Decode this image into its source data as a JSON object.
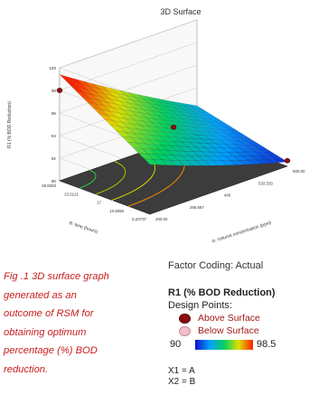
{
  "chart_data": {
    "type": "surface",
    "title": "3D Surface",
    "zlabel": "R1 (% BOD Reduction)",
    "xlabel": "A: Volume concentration (ppm)",
    "ylabel": "B: time (hours)",
    "x_ticks": [
      "200.00",
      "266.667",
      "400",
      "533.333",
      "600.00"
    ],
    "y_ticks": [
      "5.20737",
      "10.6066",
      "17",
      "23.5121",
      "28.8283"
    ],
    "z_ticks": [
      "90",
      "92",
      "94",
      "96",
      "98",
      "100"
    ],
    "zlim": [
      90,
      100
    ],
    "design_points": [
      {
        "type": "above",
        "x": 200.0,
        "y": 28.8283,
        "z": 98.0
      },
      {
        "type": "above",
        "x": 400,
        "y": 17,
        "z": 94.1
      },
      {
        "type": "above",
        "x": 600.0,
        "y": 5.20737,
        "z": 90.5
      }
    ],
    "color_scale": {
      "min": "90",
      "max": "98.5"
    }
  },
  "caption": {
    "lines": [
      "Fig .1 3D surface graph",
      "generated as an",
      "outcome of RSM for",
      "obtaining optimum",
      "percentage (%) BOD",
      "reduction."
    ]
  },
  "legend": {
    "factor_coding": "Factor Coding: Actual",
    "response": "R1 (% BOD Reduction)",
    "design_points_label": "Design Points:",
    "above": "Above Surface",
    "below": "Below Surface",
    "x1": "X1 = A",
    "x2": "X2 = B"
  },
  "colors": {
    "above_point": "#8b0d0d",
    "below_point": "#f2c0c8",
    "caption": "#c81e1e"
  }
}
